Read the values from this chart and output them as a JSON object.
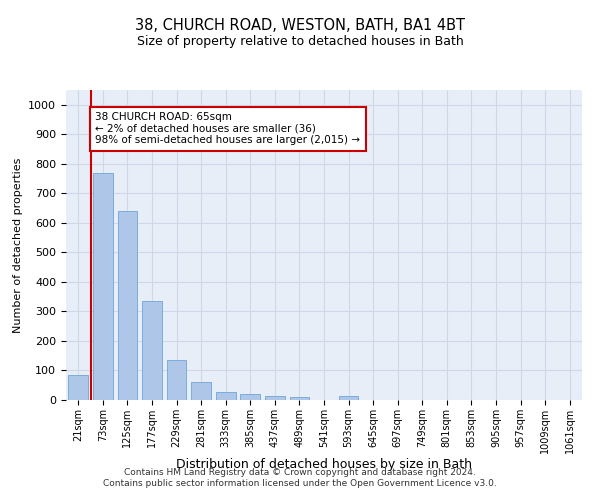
{
  "title": "38, CHURCH ROAD, WESTON, BATH, BA1 4BT",
  "subtitle": "Size of property relative to detached houses in Bath",
  "xlabel": "Distribution of detached houses by size in Bath",
  "ylabel": "Number of detached properties",
  "categories": [
    "21sqm",
    "73sqm",
    "125sqm",
    "177sqm",
    "229sqm",
    "281sqm",
    "333sqm",
    "385sqm",
    "437sqm",
    "489sqm",
    "541sqm",
    "593sqm",
    "645sqm",
    "697sqm",
    "749sqm",
    "801sqm",
    "853sqm",
    "905sqm",
    "957sqm",
    "1009sqm",
    "1061sqm"
  ],
  "values": [
    85,
    770,
    640,
    335,
    135,
    62,
    27,
    20,
    13,
    10,
    0,
    12,
    0,
    0,
    0,
    0,
    0,
    0,
    0,
    0,
    0
  ],
  "bar_color": "#aec6e8",
  "bar_edge_color": "#5b9bd5",
  "annotation_text": "38 CHURCH ROAD: 65sqm\n← 2% of detached houses are smaller (36)\n98% of semi-detached houses are larger (2,015) →",
  "annotation_box_color": "#ffffff",
  "annotation_box_edge_color": "#cc0000",
  "vline_color": "#cc0000",
  "vline_x": 0.5,
  "ylim": [
    0,
    1050
  ],
  "yticks": [
    0,
    100,
    200,
    300,
    400,
    500,
    600,
    700,
    800,
    900,
    1000
  ],
  "footer_line1": "Contains HM Land Registry data © Crown copyright and database right 2024.",
  "footer_line2": "Contains public sector information licensed under the Open Government Licence v3.0.",
  "grid_color": "#d0d8e8",
  "bg_color": "#e8eef8"
}
